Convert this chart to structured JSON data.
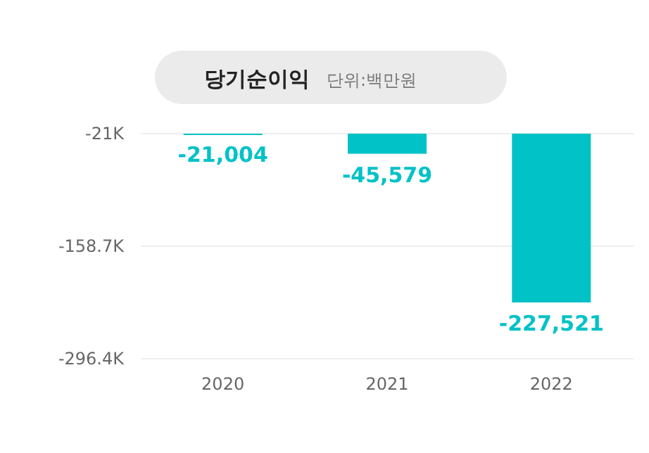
{
  "chart_data": {
    "type": "bar",
    "title": "당기순이익",
    "subtitle": "단위:백만원",
    "categories": [
      "2020",
      "2021",
      "2022"
    ],
    "values": [
      -21004,
      -45579,
      -227521
    ],
    "value_labels": [
      "-21,004",
      "-45,579",
      "-227,521"
    ],
    "color": "#00c2c7",
    "ylim": [
      -296400,
      -21000
    ],
    "yticks": [
      {
        "value": -21000,
        "label": "-21K"
      },
      {
        "value": -158700,
        "label": "-158.7K"
      },
      {
        "value": -296400,
        "label": "-296.4K"
      }
    ],
    "grid": "y"
  }
}
